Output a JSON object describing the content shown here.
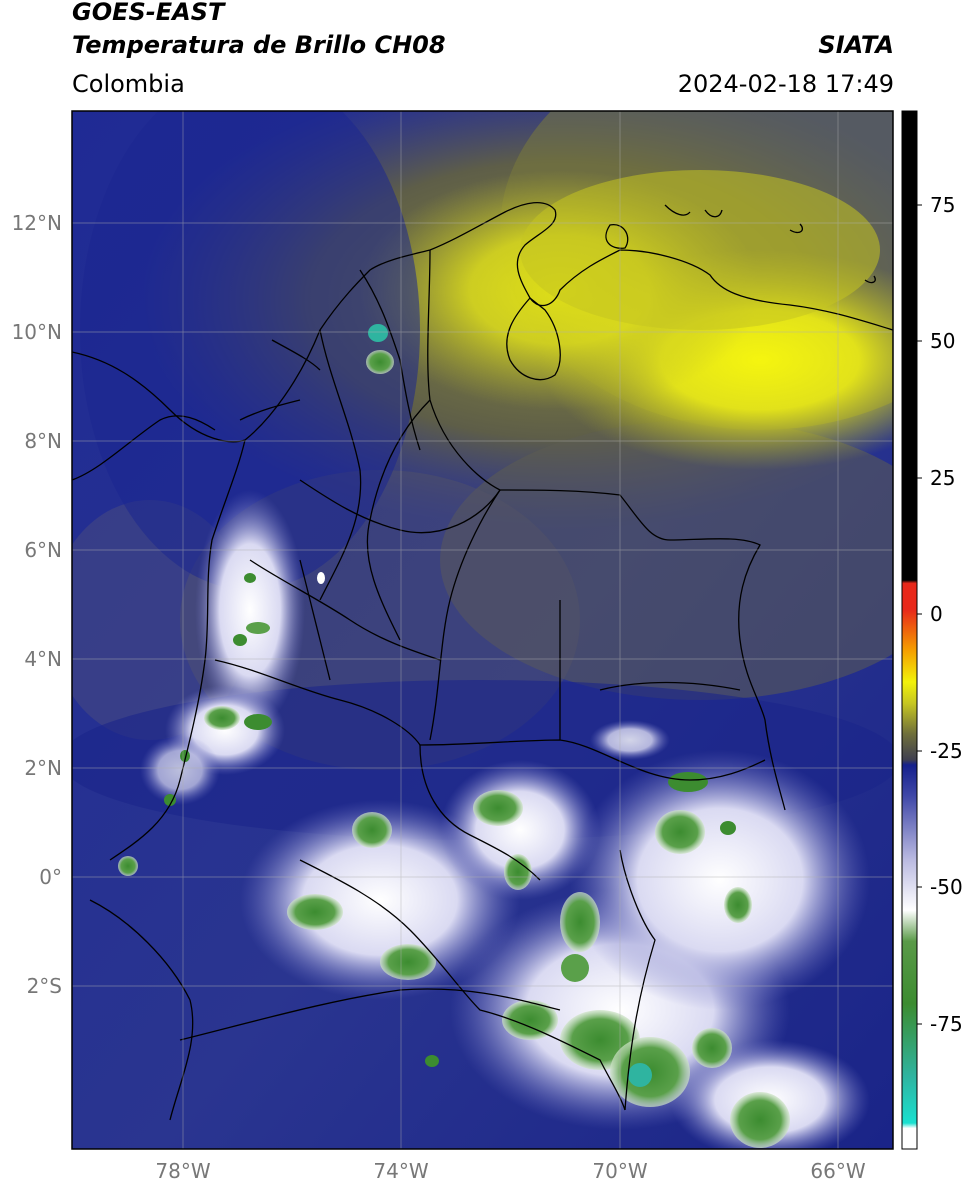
{
  "header": {
    "line1": "GOES-EAST",
    "line2": "Temperatura de Brillo CH08",
    "agency": "SIATA",
    "region": "Colombia",
    "datetime": "2024-02-18 17:49"
  },
  "map": {
    "lat_ticks": [
      "12°N",
      "10°N",
      "8°N",
      "6°N",
      "4°N",
      "2°N",
      "0°",
      "2°S"
    ],
    "lon_ticks": [
      "78°W",
      "74°W",
      "70°W",
      "66°W"
    ]
  },
  "colorbar": {
    "ticks": [
      "75",
      "50",
      "25",
      "0",
      "-25",
      "-50",
      "-75"
    ],
    "colors": {
      "black": "#000000",
      "red": "#e8281a",
      "orange": "#f5a000",
      "yellow": "#f2f20a",
      "olive": "#6f6f3a",
      "navy": "#15208c",
      "lavender": "#b8b8e0",
      "white": "#ffffff",
      "green": "#3c8c30",
      "cyan": "#19e0d0"
    }
  }
}
